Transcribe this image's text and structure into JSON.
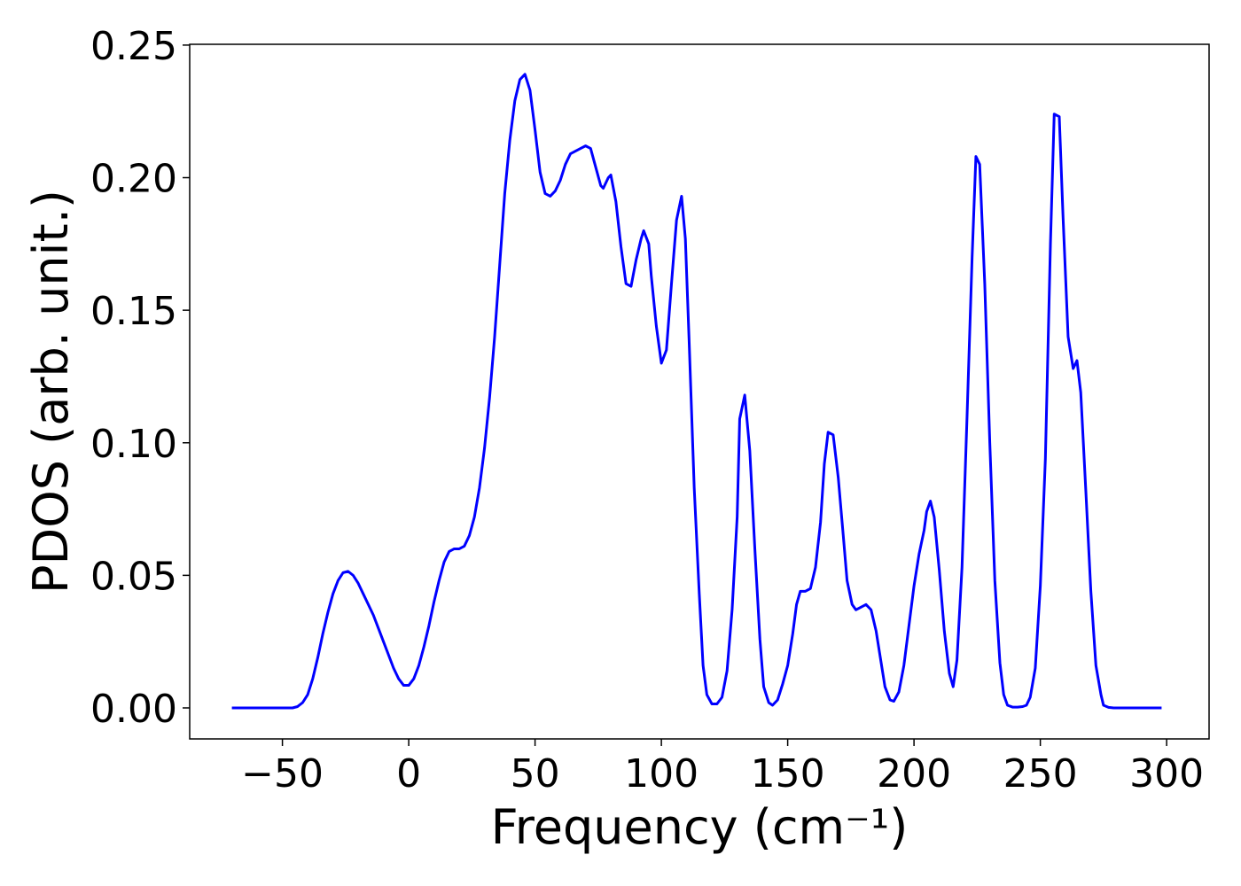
{
  "chart_data": {
    "type": "line",
    "xlabel": "Frequency (cm⁻¹)",
    "ylabel": "PDOS (arb. unit.)",
    "color": "#0000ff",
    "x": [
      -70,
      -46,
      -44,
      -42,
      -40,
      -38,
      -36,
      -34,
      -32,
      -30,
      -28,
      -26,
      -24,
      -22,
      -20,
      -18,
      -16,
      -14,
      -12,
      -10,
      -8,
      -6,
      -4,
      -2,
      0,
      2,
      4,
      6,
      8,
      10,
      12,
      14,
      16,
      18,
      20,
      22,
      24,
      26,
      28,
      30,
      32,
      34,
      36,
      38,
      40,
      42,
      44,
      46,
      48,
      50,
      52,
      54,
      56,
      58,
      60,
      62,
      64,
      66,
      68,
      70,
      72,
      74,
      76,
      77,
      79,
      80,
      82,
      84,
      86,
      88,
      90,
      92,
      93,
      95,
      96,
      98,
      100,
      102,
      104,
      106,
      108,
      109.5,
      111,
      113,
      115,
      116.5,
      118,
      120,
      122,
      124,
      126,
      128,
      130,
      131,
      133,
      135,
      137,
      139,
      140.5,
      142.5,
      144,
      146,
      148,
      150,
      152,
      153.5,
      155,
      157,
      159,
      161,
      163,
      164.5,
      166,
      168,
      170,
      172,
      173.5,
      175.5,
      177,
      179,
      181,
      183,
      185,
      187,
      188.5,
      190.5,
      192,
      194,
      196,
      198,
      200,
      202,
      204,
      205,
      206.5,
      208,
      210,
      212,
      214,
      215.5,
      217,
      219,
      221,
      223,
      224.5,
      226,
      228,
      230,
      232,
      234,
      235.5,
      237,
      239,
      241,
      243,
      244.5,
      246,
      248,
      250,
      252,
      254,
      255.5,
      257.5,
      259,
      261,
      263,
      264.5,
      266,
      268,
      270,
      272,
      274,
      275,
      277,
      279,
      298
    ],
    "values": [
      0,
      0,
      0.0005,
      0.002,
      0.005,
      0.011,
      0.019,
      0.028,
      0.036,
      0.043,
      0.048,
      0.051,
      0.0515,
      0.05,
      0.047,
      0.043,
      0.039,
      0.035,
      0.03,
      0.025,
      0.02,
      0.015,
      0.011,
      0.0085,
      0.0085,
      0.011,
      0.016,
      0.023,
      0.031,
      0.04,
      0.048,
      0.055,
      0.059,
      0.06,
      0.06,
      0.061,
      0.065,
      0.072,
      0.083,
      0.098,
      0.117,
      0.14,
      0.167,
      0.194,
      0.214,
      0.229,
      0.237,
      0.239,
      0.233,
      0.218,
      0.202,
      0.194,
      0.193,
      0.195,
      0.199,
      0.205,
      0.209,
      0.21,
      0.211,
      0.212,
      0.211,
      0.204,
      0.197,
      0.196,
      0.2,
      0.201,
      0.191,
      0.174,
      0.16,
      0.159,
      0.169,
      0.177,
      0.18,
      0.175,
      0.163,
      0.144,
      0.13,
      0.135,
      0.16,
      0.184,
      0.193,
      0.177,
      0.138,
      0.083,
      0.043,
      0.016,
      0.005,
      0.0015,
      0.0015,
      0.004,
      0.014,
      0.037,
      0.072,
      0.109,
      0.118,
      0.097,
      0.06,
      0.026,
      0.008,
      0.002,
      0.001,
      0.003,
      0.009,
      0.016,
      0.028,
      0.039,
      0.044,
      0.044,
      0.045,
      0.053,
      0.07,
      0.092,
      0.104,
      0.103,
      0.087,
      0.065,
      0.048,
      0.039,
      0.037,
      0.038,
      0.039,
      0.037,
      0.029,
      0.017,
      0.008,
      0.003,
      0.0025,
      0.006,
      0.016,
      0.031,
      0.046,
      0.058,
      0.067,
      0.074,
      0.078,
      0.072,
      0.052,
      0.029,
      0.013,
      0.008,
      0.018,
      0.053,
      0.11,
      0.17,
      0.208,
      0.205,
      0.16,
      0.1,
      0.048,
      0.017,
      0.005,
      0.001,
      0.0003,
      0.0003,
      0.0005,
      0.001,
      0.004,
      0.015,
      0.046,
      0.094,
      0.175,
      0.224,
      0.223,
      0.185,
      0.14,
      0.128,
      0.131,
      0.119,
      0.082,
      0.044,
      0.016,
      0.005,
      0.001,
      0.0002,
      0,
      0
    ],
    "xlim": [
      -86.7,
      316.8
    ],
    "ylim": [
      -0.0117,
      0.2503
    ],
    "xticks": [
      {
        "value": -50,
        "label": "−50"
      },
      0,
      50,
      100,
      150,
      200,
      250,
      300
    ],
    "yticks": [
      {
        "value": 0,
        "label": "0.00"
      },
      {
        "value": 0.05,
        "label": "0.05"
      },
      {
        "value": 0.1,
        "label": "0.10"
      },
      {
        "value": 0.15,
        "label": "0.15"
      },
      {
        "value": 0.2,
        "label": "0.20"
      },
      {
        "value": 0.25,
        "label": "0.25"
      }
    ],
    "grid": false
  }
}
